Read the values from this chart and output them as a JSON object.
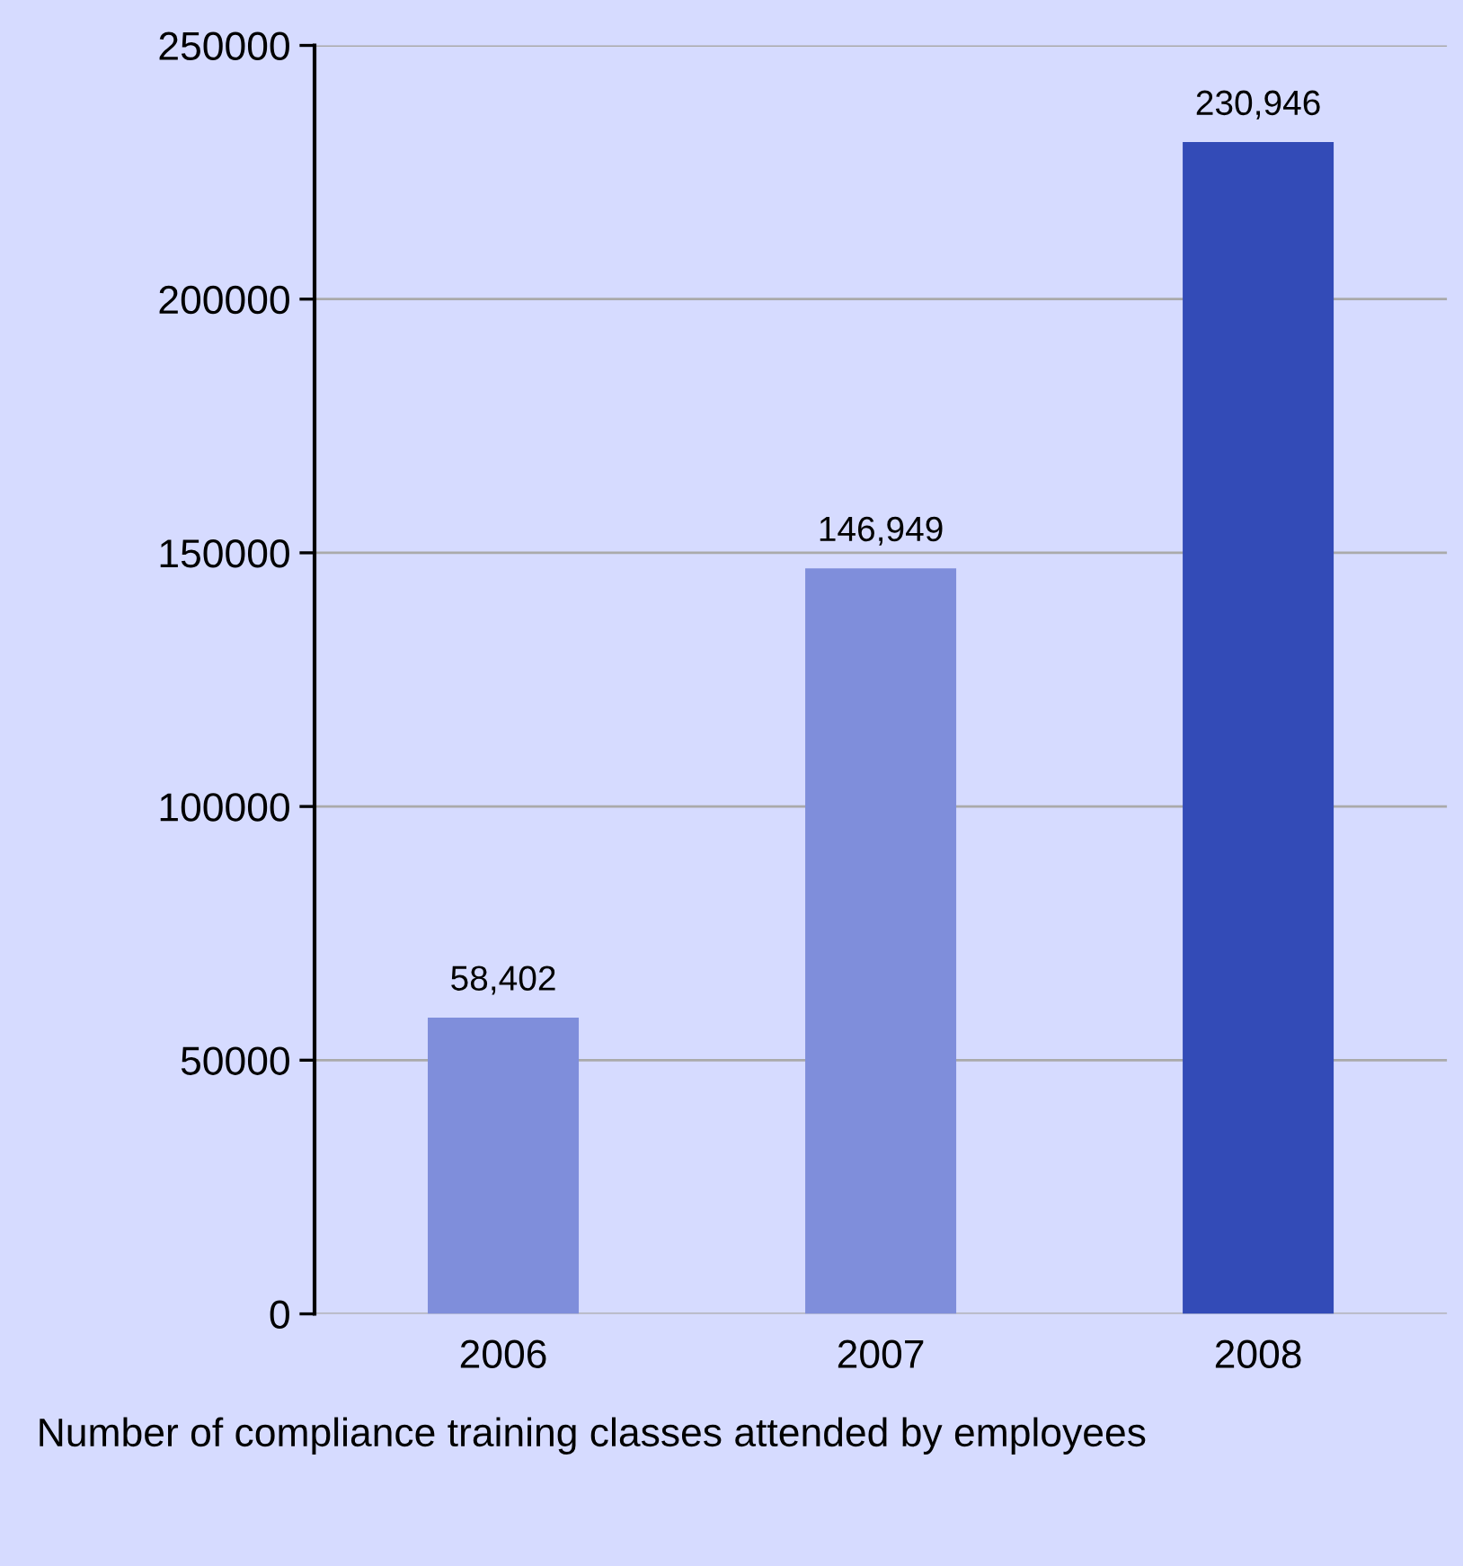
{
  "chart_data": {
    "type": "bar",
    "categories": [
      "2006",
      "2007",
      "2008"
    ],
    "values": [
      58402,
      146949,
      230946
    ],
    "colors": [
      "#7f8edb",
      "#7f8edb",
      "#334bb7"
    ],
    "value_labels": [
      "58,402",
      "146,949",
      "230,946"
    ],
    "ylim": [
      0,
      250000
    ],
    "yticks": [
      0,
      50000,
      100000,
      150000,
      200000,
      250000
    ],
    "grid": "y",
    "annotations": [
      "Number of compliance training classes attended by employees"
    ]
  }
}
